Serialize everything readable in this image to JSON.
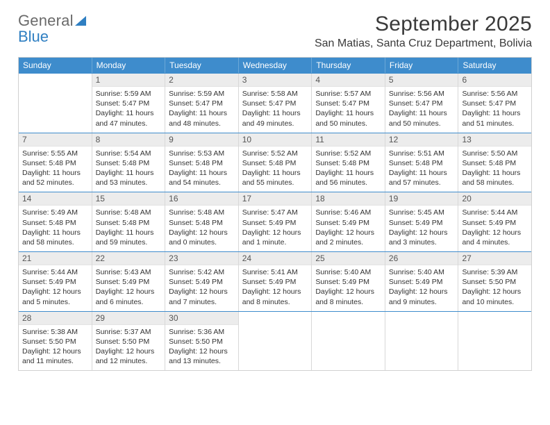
{
  "logo": {
    "line1": "General",
    "line2": "Blue"
  },
  "title": "September 2025",
  "location": "San Matias, Santa Cruz Department, Bolivia",
  "colors": {
    "header_bg": "#3e8ccc",
    "header_text": "#ffffff",
    "row_divider": "#3e8ccc",
    "daynum_bg": "#ececec",
    "body_text": "#333333",
    "logo_gray": "#6a6a6a",
    "logo_blue": "#2f7fc2",
    "page_bg": "#ffffff",
    "cell_border": "#d8d8d8"
  },
  "typography": {
    "title_fontsize": 30,
    "location_fontsize": 16,
    "dow_fontsize": 12,
    "daynum_fontsize": 12,
    "body_fontsize": 10.5,
    "font_family": "Arial"
  },
  "dow": [
    "Sunday",
    "Monday",
    "Tuesday",
    "Wednesday",
    "Thursday",
    "Friday",
    "Saturday"
  ],
  "weeks": [
    [
      {
        "n": "",
        "sr": "",
        "ss": "",
        "dl": ""
      },
      {
        "n": "1",
        "sr": "Sunrise: 5:59 AM",
        "ss": "Sunset: 5:47 PM",
        "dl": "Daylight: 11 hours and 47 minutes."
      },
      {
        "n": "2",
        "sr": "Sunrise: 5:59 AM",
        "ss": "Sunset: 5:47 PM",
        "dl": "Daylight: 11 hours and 48 minutes."
      },
      {
        "n": "3",
        "sr": "Sunrise: 5:58 AM",
        "ss": "Sunset: 5:47 PM",
        "dl": "Daylight: 11 hours and 49 minutes."
      },
      {
        "n": "4",
        "sr": "Sunrise: 5:57 AM",
        "ss": "Sunset: 5:47 PM",
        "dl": "Daylight: 11 hours and 50 minutes."
      },
      {
        "n": "5",
        "sr": "Sunrise: 5:56 AM",
        "ss": "Sunset: 5:47 PM",
        "dl": "Daylight: 11 hours and 50 minutes."
      },
      {
        "n": "6",
        "sr": "Sunrise: 5:56 AM",
        "ss": "Sunset: 5:47 PM",
        "dl": "Daylight: 11 hours and 51 minutes."
      }
    ],
    [
      {
        "n": "7",
        "sr": "Sunrise: 5:55 AM",
        "ss": "Sunset: 5:48 PM",
        "dl": "Daylight: 11 hours and 52 minutes."
      },
      {
        "n": "8",
        "sr": "Sunrise: 5:54 AM",
        "ss": "Sunset: 5:48 PM",
        "dl": "Daylight: 11 hours and 53 minutes."
      },
      {
        "n": "9",
        "sr": "Sunrise: 5:53 AM",
        "ss": "Sunset: 5:48 PM",
        "dl": "Daylight: 11 hours and 54 minutes."
      },
      {
        "n": "10",
        "sr": "Sunrise: 5:52 AM",
        "ss": "Sunset: 5:48 PM",
        "dl": "Daylight: 11 hours and 55 minutes."
      },
      {
        "n": "11",
        "sr": "Sunrise: 5:52 AM",
        "ss": "Sunset: 5:48 PM",
        "dl": "Daylight: 11 hours and 56 minutes."
      },
      {
        "n": "12",
        "sr": "Sunrise: 5:51 AM",
        "ss": "Sunset: 5:48 PM",
        "dl": "Daylight: 11 hours and 57 minutes."
      },
      {
        "n": "13",
        "sr": "Sunrise: 5:50 AM",
        "ss": "Sunset: 5:48 PM",
        "dl": "Daylight: 11 hours and 58 minutes."
      }
    ],
    [
      {
        "n": "14",
        "sr": "Sunrise: 5:49 AM",
        "ss": "Sunset: 5:48 PM",
        "dl": "Daylight: 11 hours and 58 minutes."
      },
      {
        "n": "15",
        "sr": "Sunrise: 5:48 AM",
        "ss": "Sunset: 5:48 PM",
        "dl": "Daylight: 11 hours and 59 minutes."
      },
      {
        "n": "16",
        "sr": "Sunrise: 5:48 AM",
        "ss": "Sunset: 5:48 PM",
        "dl": "Daylight: 12 hours and 0 minutes."
      },
      {
        "n": "17",
        "sr": "Sunrise: 5:47 AM",
        "ss": "Sunset: 5:49 PM",
        "dl": "Daylight: 12 hours and 1 minute."
      },
      {
        "n": "18",
        "sr": "Sunrise: 5:46 AM",
        "ss": "Sunset: 5:49 PM",
        "dl": "Daylight: 12 hours and 2 minutes."
      },
      {
        "n": "19",
        "sr": "Sunrise: 5:45 AM",
        "ss": "Sunset: 5:49 PM",
        "dl": "Daylight: 12 hours and 3 minutes."
      },
      {
        "n": "20",
        "sr": "Sunrise: 5:44 AM",
        "ss": "Sunset: 5:49 PM",
        "dl": "Daylight: 12 hours and 4 minutes."
      }
    ],
    [
      {
        "n": "21",
        "sr": "Sunrise: 5:44 AM",
        "ss": "Sunset: 5:49 PM",
        "dl": "Daylight: 12 hours and 5 minutes."
      },
      {
        "n": "22",
        "sr": "Sunrise: 5:43 AM",
        "ss": "Sunset: 5:49 PM",
        "dl": "Daylight: 12 hours and 6 minutes."
      },
      {
        "n": "23",
        "sr": "Sunrise: 5:42 AM",
        "ss": "Sunset: 5:49 PM",
        "dl": "Daylight: 12 hours and 7 minutes."
      },
      {
        "n": "24",
        "sr": "Sunrise: 5:41 AM",
        "ss": "Sunset: 5:49 PM",
        "dl": "Daylight: 12 hours and 8 minutes."
      },
      {
        "n": "25",
        "sr": "Sunrise: 5:40 AM",
        "ss": "Sunset: 5:49 PM",
        "dl": "Daylight: 12 hours and 8 minutes."
      },
      {
        "n": "26",
        "sr": "Sunrise: 5:40 AM",
        "ss": "Sunset: 5:49 PM",
        "dl": "Daylight: 12 hours and 9 minutes."
      },
      {
        "n": "27",
        "sr": "Sunrise: 5:39 AM",
        "ss": "Sunset: 5:50 PM",
        "dl": "Daylight: 12 hours and 10 minutes."
      }
    ],
    [
      {
        "n": "28",
        "sr": "Sunrise: 5:38 AM",
        "ss": "Sunset: 5:50 PM",
        "dl": "Daylight: 12 hours and 11 minutes."
      },
      {
        "n": "29",
        "sr": "Sunrise: 5:37 AM",
        "ss": "Sunset: 5:50 PM",
        "dl": "Daylight: 12 hours and 12 minutes."
      },
      {
        "n": "30",
        "sr": "Sunrise: 5:36 AM",
        "ss": "Sunset: 5:50 PM",
        "dl": "Daylight: 12 hours and 13 minutes."
      },
      {
        "n": "",
        "sr": "",
        "ss": "",
        "dl": ""
      },
      {
        "n": "",
        "sr": "",
        "ss": "",
        "dl": ""
      },
      {
        "n": "",
        "sr": "",
        "ss": "",
        "dl": ""
      },
      {
        "n": "",
        "sr": "",
        "ss": "",
        "dl": ""
      }
    ]
  ]
}
